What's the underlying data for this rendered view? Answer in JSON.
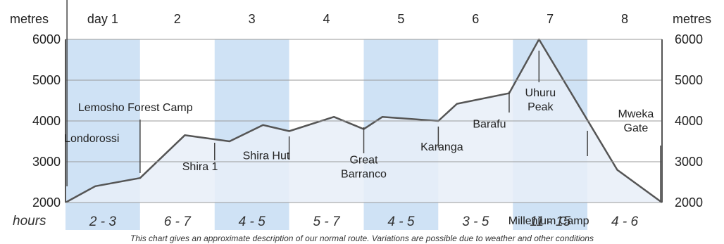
{
  "chart_data": {
    "type": "area",
    "title": "",
    "xlabel": "",
    "ylabel_left": "metres",
    "ylabel_right": "metres",
    "ylim": [
      2000,
      6000
    ],
    "yticks": [
      "2000",
      "3000",
      "4000",
      "5000",
      "6000"
    ],
    "day_labels": [
      "day 1",
      "2",
      "3",
      "4",
      "5",
      "6",
      "7",
      "8"
    ],
    "hours_label": "hours",
    "hours": [
      "2 - 3",
      "6 - 7",
      "4 - 5",
      "5 - 7",
      "4 - 5",
      "3 - 5",
      "11 - 15",
      "4 - 6"
    ],
    "profile": [
      {
        "x": 0.0,
        "y": 2000
      },
      {
        "x": 0.4,
        "y": 2400
      },
      {
        "x": 1.0,
        "y": 2600
      },
      {
        "x": 1.6,
        "y": 3650
      },
      {
        "x": 2.2,
        "y": 3500
      },
      {
        "x": 2.65,
        "y": 3900
      },
      {
        "x": 3.0,
        "y": 3750
      },
      {
        "x": 3.6,
        "y": 4100
      },
      {
        "x": 4.0,
        "y": 3800
      },
      {
        "x": 4.25,
        "y": 4100
      },
      {
        "x": 5.0,
        "y": 4000
      },
      {
        "x": 5.25,
        "y": 4420
      },
      {
        "x": 5.95,
        "y": 4680
      },
      {
        "x": 6.35,
        "y": 6000
      },
      {
        "x": 7.4,
        "y": 2800
      },
      {
        "x": 8.0,
        "y": 2000
      }
    ],
    "stops": [
      {
        "name": "Londorossi",
        "lines": [
          "Londorossi"
        ],
        "x": 0.02,
        "y": 2000
      },
      {
        "name": "Lemosho Forest Camp",
        "lines": [
          "Lemosho Forest Camp"
        ],
        "x": 1.0,
        "y": 2600
      },
      {
        "name": "Shira 1",
        "lines": [
          "Shira 1"
        ],
        "x": 2.0,
        "y": 3520
      },
      {
        "name": "Shira Hut",
        "lines": [
          "Shira Hut"
        ],
        "x": 3.0,
        "y": 3750
      },
      {
        "name": "Great Barranco",
        "lines": [
          "Great",
          "Barranco"
        ],
        "x": 4.0,
        "y": 3800
      },
      {
        "name": "Karanga",
        "lines": [
          "Karanga"
        ],
        "x": 5.0,
        "y": 4000
      },
      {
        "name": "Barafu",
        "lines": [
          "Barafu"
        ],
        "x": 5.95,
        "y": 4680
      },
      {
        "name": "Uhuru Peak",
        "lines": [
          "Uhuru",
          "Peak"
        ],
        "x": 6.35,
        "y": 6000
      },
      {
        "name": "Millenium Camp",
        "lines": [
          "Millenium Camp"
        ],
        "x": 7.0,
        "y": 3500
      },
      {
        "name": "Mweka Gate",
        "lines": [
          "Mweka",
          "Gate"
        ],
        "x": 7.98,
        "y": 2000
      }
    ],
    "note": "This chart gives an approximate description of our normal route. Variations are possible due to weather and other conditions",
    "colors": {
      "band_dark": "#cfe2f5",
      "band_light": "#ffffff",
      "area_fill": "#e7eff8",
      "line": "#555555",
      "grid": "#9a9a9a"
    }
  }
}
